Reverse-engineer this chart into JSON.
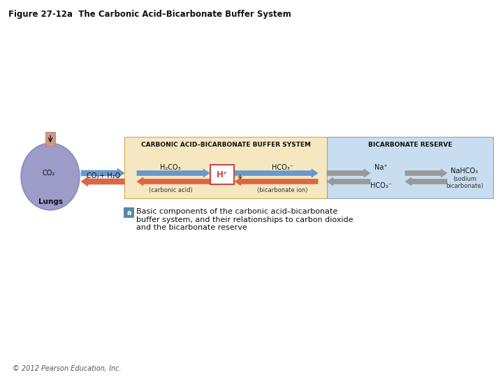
{
  "title": "Figure 27-12a  The Carbonic Acid–Bicarbonate Buffer System",
  "title_fontsize": 8.5,
  "copyright": "© 2012 Pearson Education, Inc.",
  "figure_bg": "#ffffff",
  "lungs_circle_color": "#9b9cc8",
  "lungs_circle_edge": "#8888bb",
  "lungs_tube_color": "#cc9988",
  "carbonic_box_color": "#f5e8c0",
  "carbonic_box_edge": "#ccaa55",
  "bicarbonate_box_color": "#c8ddef",
  "bicarbonate_box_edge": "#88aabb",
  "hplus_box_color": "#ffffff",
  "hplus_box_edge": "#cc4444",
  "hplus_text_color": "#cc4444",
  "blue_arrow_color": "#6699cc",
  "red_arrow_color": "#dd6644",
  "gray_arrow_color": "#999999",
  "carbonic_label": "CARBONIC ACID–BICARBONATE BUFFER SYSTEM",
  "bicarbonate_reserve_label": "BICARBONATE RESERVE",
  "h2co3_label": "H₂CO₃",
  "h2co3_sublabel": "(carbonic acid)",
  "hco3_label": "HCO₃⁻",
  "hco3_sublabel": "(bicarbonate ion)",
  "hplus_label": "H⁺",
  "plus_label": "+",
  "na_label": "Na⁺",
  "hco3_reserve_label": "HCO₃⁻",
  "nahco3_label": "NaHCO₃",
  "nahco3_sublabel": "(sodium\nbicarbonate)",
  "co2_label": "CO₂",
  "co2h2o_label": "CO₂+ H₂O",
  "lungs_label": "Lungs",
  "annotation_box_color": "#5588aa",
  "annotation_letter": "a",
  "annotation_text": "Basic components of the carbonic acid–bicarbonate\nbuffer system, and their relationships to carbon dioxide\nand the bicarbonate reserve"
}
